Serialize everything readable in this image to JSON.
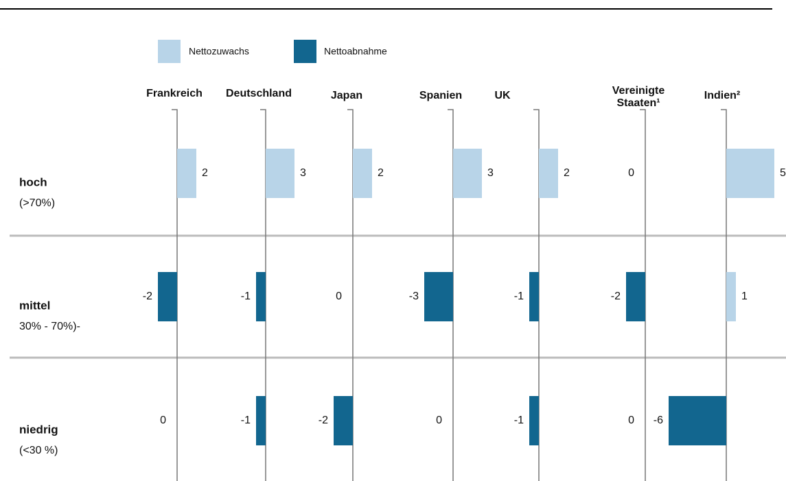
{
  "chart_data": {
    "type": "bar",
    "categories": [
      "hoch",
      "mittel",
      "niedrig"
    ],
    "category_notes": [
      "(>70%)",
      "30% - 70%)-",
      "(<30 %)"
    ],
    "legend": [
      {
        "name": "Nettozuwachs",
        "color": "#b8d4e8"
      },
      {
        "name": "Nettoabnahme",
        "color": "#12668f"
      }
    ],
    "series": [
      {
        "name": "Frankreich",
        "values": [
          2,
          -2,
          0
        ]
      },
      {
        "name": "Deutschland",
        "values": [
          3,
          -1,
          -1
        ]
      },
      {
        "name": "Japan",
        "values": [
          2,
          0,
          -2
        ]
      },
      {
        "name": "Spanien",
        "values": [
          3,
          -3,
          0
        ]
      },
      {
        "name": "UK",
        "values": [
          2,
          -1,
          -1
        ]
      },
      {
        "name": "Vereinigte Staaten¹",
        "values": [
          0,
          -2,
          0
        ]
      },
      {
        "name": "Indien²",
        "values": [
          5,
          1,
          -6
        ]
      }
    ]
  }
}
